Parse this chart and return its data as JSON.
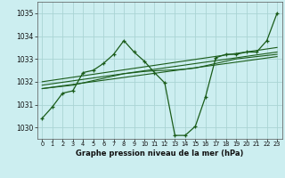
{
  "title": "Graphe pression niveau de la mer (hPa)",
  "bg_color": "#cceef0",
  "grid_color": "#aad4d4",
  "line_color": "#1a5c1a",
  "ylim": [
    1029.5,
    1035.5
  ],
  "yticks": [
    1030,
    1031,
    1032,
    1033,
    1034,
    1035
  ],
  "xlim": [
    -0.5,
    23.5
  ],
  "y_main": [
    1030.4,
    1030.9,
    1031.5,
    1031.6,
    1032.4,
    1032.5,
    1032.8,
    1033.2,
    1033.8,
    1033.3,
    1032.9,
    1032.4,
    1031.95,
    1029.65,
    1029.65,
    1030.05,
    1031.35,
    1033.05,
    1033.2,
    1033.2,
    1033.3,
    1033.3,
    1033.8,
    1035.0
  ],
  "y_smooth": [
    1031.7,
    1031.75,
    1031.8,
    1031.85,
    1031.95,
    1032.05,
    1032.15,
    1032.25,
    1032.35,
    1032.4,
    1032.45,
    1032.48,
    1032.5,
    1032.52,
    1032.55,
    1032.6,
    1032.7,
    1032.8,
    1032.9,
    1033.0,
    1033.05,
    1033.1,
    1033.15,
    1033.2
  ],
  "trend1_x": [
    0,
    23
  ],
  "trend1_y": [
    1031.7,
    1033.1
  ],
  "trend2_x": [
    0,
    23
  ],
  "trend2_y": [
    1031.85,
    1033.3
  ],
  "trend3_x": [
    0,
    23
  ],
  "trend3_y": [
    1032.0,
    1033.5
  ]
}
